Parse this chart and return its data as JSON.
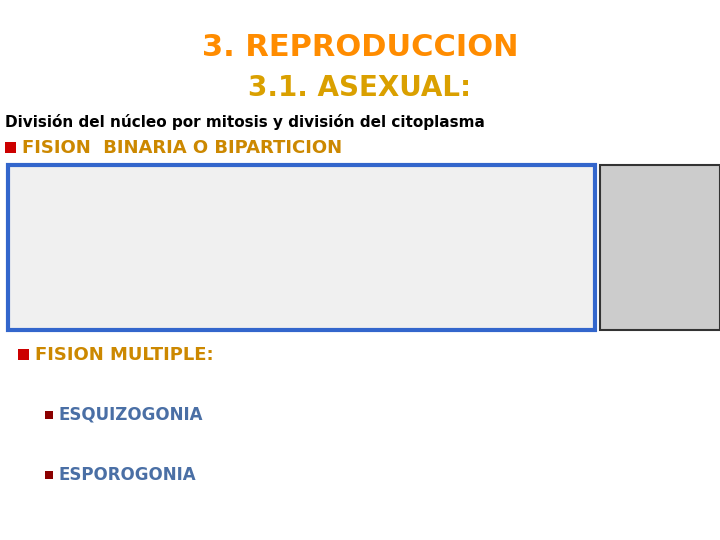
{
  "bg_color": "#ffffff",
  "title1": "3. REPRODUCCION",
  "title1_color": "#ff8c00",
  "title2": "3.1. ASEXUAL:",
  "title2_color": "#daa000",
  "subtitle": "División del núcleo por mitosis y división del citoplasma",
  "subtitle_color": "#000000",
  "fision_binaria_label": "FISION  BINARIA O BIPARTICION",
  "fision_binaria_color": "#cc8800",
  "fision_multiple_label": "FISION MULTIPLE:",
  "fision_multiple_color": "#cc8800",
  "esquizogonia_label": "ESQUIZOGONIA",
  "esquizogonia_color": "#4a6fa5",
  "esporogonia_label": "ESPOROGONIA",
  "esporogonia_color": "#4a6fa5",
  "bullet_color": "#cc0000",
  "sub_bullet_color": "#8b0000",
  "box_edge_color": "#3366cc",
  "title1_fontsize": 22,
  "title2_fontsize": 20,
  "subtitle_fontsize": 11,
  "fision_fontsize": 13,
  "multiple_fontsize": 13,
  "sub_fontsize": 12
}
